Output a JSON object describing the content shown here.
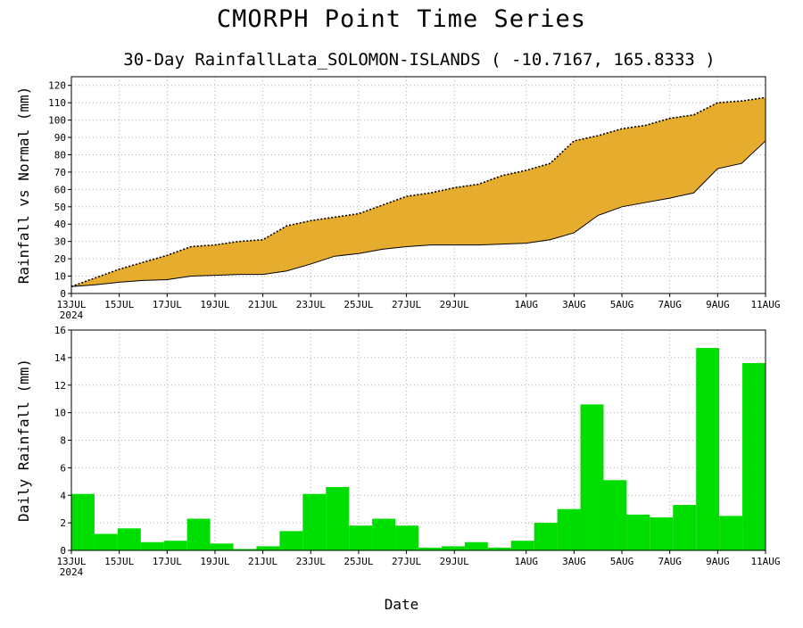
{
  "title": "CMORPH Point Time Series",
  "subtitle": "30-Day RainfallLata_SOLOMON-ISLANDS ( -10.7167, 165.8333 )",
  "xlabel": "Date",
  "colors": {
    "fill": "#e6ac2e",
    "bars": "#00dd00",
    "line": "#000000",
    "grid": "#b0b0b0"
  },
  "x_ticks": [
    {
      "day": 0,
      "label": "13JUL",
      "year": "2024"
    },
    {
      "day": 2,
      "label": "15JUL"
    },
    {
      "day": 4,
      "label": "17JUL"
    },
    {
      "day": 6,
      "label": "19JUL"
    },
    {
      "day": 8,
      "label": "21JUL"
    },
    {
      "day": 10,
      "label": "23JUL"
    },
    {
      "day": 12,
      "label": "25JUL"
    },
    {
      "day": 14,
      "label": "27JUL"
    },
    {
      "day": 16,
      "label": "29JUL"
    },
    {
      "day": 19,
      "label": "1AUG"
    },
    {
      "day": 21,
      "label": "3AUG"
    },
    {
      "day": 23,
      "label": "5AUG"
    },
    {
      "day": 25,
      "label": "7AUG"
    },
    {
      "day": 27,
      "label": "9AUG"
    },
    {
      "day": 29,
      "label": "11AUG"
    }
  ],
  "chart_data": [
    {
      "type": "area",
      "ylabel": "Rainfall vs Normal (mm)",
      "xlim": [
        0,
        29
      ],
      "ylim": [
        0,
        125
      ],
      "yticks": [
        0,
        10,
        20,
        30,
        40,
        50,
        60,
        70,
        80,
        90,
        100,
        110,
        120
      ],
      "grid": true,
      "series": [
        {
          "role": "normal",
          "style": "dotted-line",
          "values": [
            4,
            9,
            14,
            18,
            22,
            27,
            28,
            30,
            31,
            39,
            42,
            44,
            46,
            51,
            56,
            58,
            61,
            63,
            68,
            71,
            75,
            88,
            91,
            95,
            97,
            101,
            103,
            110,
            111,
            113
          ]
        },
        {
          "role": "actual",
          "style": "solid-line",
          "values": [
            4,
            5,
            6.5,
            7.5,
            8,
            10,
            10.5,
            11,
            11,
            13,
            17,
            21.5,
            23,
            25.5,
            27,
            28,
            28,
            28,
            28.5,
            29,
            31,
            35,
            45,
            50,
            52.5,
            55,
            58,
            72,
            75,
            88
          ]
        }
      ]
    },
    {
      "type": "bar",
      "ylabel": "Daily Rainfall (mm)",
      "xlim": [
        0,
        29
      ],
      "ylim": [
        0,
        16
      ],
      "yticks": [
        0,
        2,
        4,
        6,
        8,
        10,
        12,
        14,
        16
      ],
      "grid": true,
      "values": [
        4.1,
        1.2,
        1.6,
        0.6,
        0.7,
        2.3,
        0.5,
        0.1,
        0.3,
        1.4,
        4.1,
        4.6,
        1.8,
        2.3,
        1.8,
        0.2,
        0.3,
        0.6,
        0.2,
        0.7,
        2.0,
        3.0,
        10.6,
        5.1,
        2.6,
        2.4,
        3.3,
        14.7,
        2.5,
        13.6
      ]
    }
  ]
}
